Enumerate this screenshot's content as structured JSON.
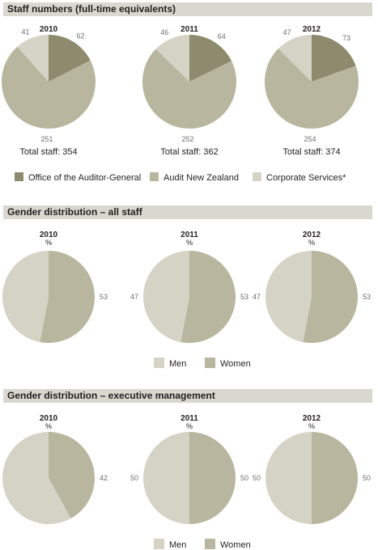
{
  "colors": {
    "office": "#8d8a6e",
    "audit": "#b8b69e",
    "corporate": "#d5d3c6",
    "men": "#d5d3c6",
    "women": "#b8b69e",
    "header_bg": "#d9d8cf"
  },
  "sections": {
    "staff": {
      "title": "Staff numbers (full-time equivalents)"
    },
    "gender_all": {
      "title": "Gender distribution – all staff"
    },
    "gender_exec": {
      "title": "Gender distribution – executive management"
    }
  },
  "chart_data": [
    {
      "type": "pie",
      "title": "Staff numbers (full-time equivalents)",
      "legend": [
        "Office of the Auditor-General",
        "Audit New Zealand",
        "Corporate Services*"
      ],
      "charts": [
        {
          "year": "2010",
          "total_label": "Total staff: 354",
          "values": [
            62,
            251,
            41
          ]
        },
        {
          "year": "2011",
          "total_label": "Total staff: 362",
          "values": [
            64,
            252,
            46
          ]
        },
        {
          "year": "2012",
          "total_label": "Total staff: 374",
          "values": [
            73,
            254,
            47
          ]
        }
      ]
    },
    {
      "type": "pie",
      "title": "Gender distribution – all staff",
      "legend": [
        "Men",
        "Women"
      ],
      "unit": "%",
      "charts": [
        {
          "year": "2010",
          "men": 47,
          "women": 53
        },
        {
          "year": "2011",
          "men": 47,
          "women": 53
        },
        {
          "year": "2012",
          "men": 47,
          "women": 53
        }
      ]
    },
    {
      "type": "pie",
      "title": "Gender distribution – executive management",
      "legend": [
        "Men",
        "Women"
      ],
      "unit": "%",
      "charts": [
        {
          "year": "2010",
          "men": 58,
          "women": 42
        },
        {
          "year": "2011",
          "men": 50,
          "women": 50
        },
        {
          "year": "2012",
          "men": 50,
          "women": 50
        }
      ]
    }
  ]
}
